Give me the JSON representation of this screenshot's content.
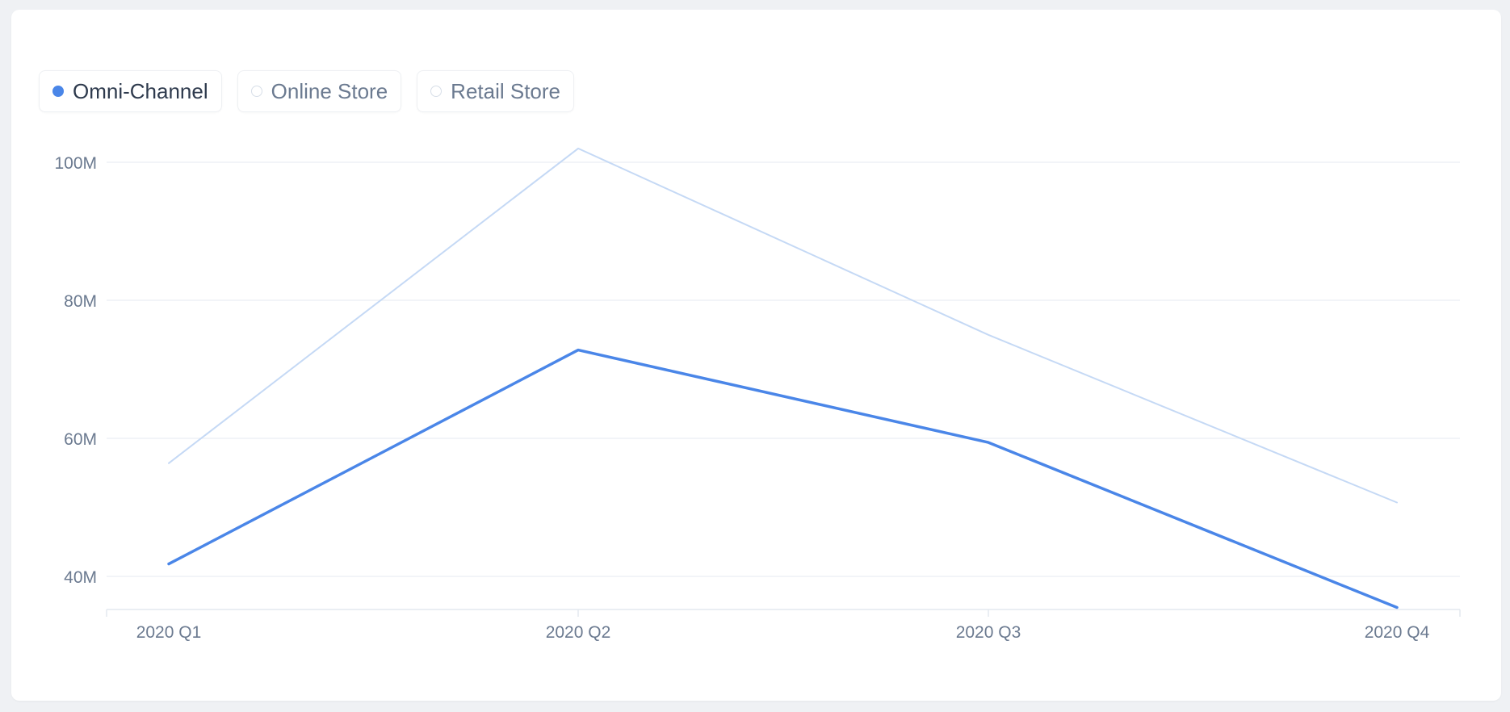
{
  "legend": {
    "items": [
      {
        "label": "Omni-Channel",
        "state": "active",
        "icon": "filled-dot-icon"
      },
      {
        "label": "Online Store",
        "state": "inactive",
        "icon": "hollow-dot-icon"
      },
      {
        "label": "Retail Store",
        "state": "inactive",
        "icon": "hollow-dot-icon"
      }
    ]
  },
  "colors": {
    "primary_series": "#4a86e8",
    "secondary_series": "#c5d9f5",
    "gridline": "#eef1f5",
    "axis_text": "#6b7a90"
  },
  "chart_data": {
    "type": "line",
    "title": "",
    "xlabel": "",
    "ylabel": "",
    "categories": [
      "2020 Q1",
      "2020 Q2",
      "2020 Q3",
      "2020 Q4"
    ],
    "yticks": [
      40000000,
      60000000,
      80000000,
      100000000
    ],
    "ytick_labels": [
      "40M",
      "60M",
      "80M",
      "100M"
    ],
    "ylim": [
      35000000,
      102000000
    ],
    "grid": true,
    "legend_position": "top-left",
    "series": [
      {
        "name": "Omni-Channel",
        "values": [
          41800000,
          72800000,
          59400000,
          35500000
        ],
        "visible": true
      },
      {
        "values": [
          56400000,
          102000000,
          75000000,
          50700000
        ],
        "visible": true,
        "faded": true
      }
    ]
  }
}
